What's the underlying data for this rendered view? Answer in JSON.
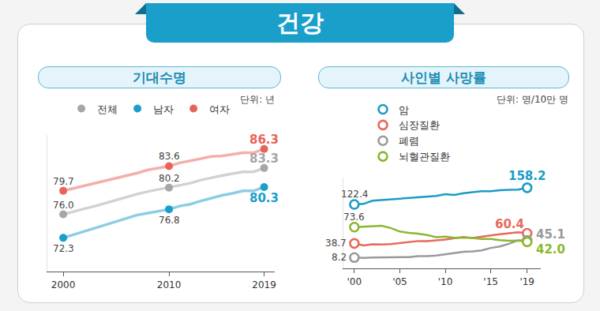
{
  "title": "건강",
  "chart_data": [
    {
      "type": "line",
      "title": "기대수명",
      "subtitle": "단위: 년",
      "x": [
        2000,
        2001,
        2002,
        2003,
        2004,
        2005,
        2006,
        2007,
        2008,
        2009,
        2010,
        2011,
        2012,
        2013,
        2014,
        2015,
        2016,
        2017,
        2018,
        2019
      ],
      "series": [
        {
          "name": "전체",
          "color": "#a6a6a6",
          "values": [
            76.0,
            76.5,
            76.9,
            77.3,
            77.8,
            78.2,
            78.7,
            79.2,
            79.6,
            79.9,
            80.2,
            80.6,
            80.9,
            81.4,
            81.8,
            82.1,
            82.4,
            82.7,
            82.7,
            83.3
          ],
          "value_labels": [
            "76.0",
            null,
            null,
            null,
            null,
            null,
            null,
            null,
            null,
            null,
            "80.2",
            null,
            null,
            null,
            null,
            null,
            null,
            null,
            null,
            "83.3"
          ]
        },
        {
          "name": "남자",
          "color": "#1a9fca",
          "values": [
            72.3,
            72.8,
            73.4,
            73.8,
            74.3,
            74.9,
            75.4,
            75.9,
            76.2,
            76.5,
            76.8,
            77.3,
            77.6,
            78.1,
            78.6,
            79.0,
            79.3,
            79.7,
            79.7,
            80.3
          ],
          "value_labels": [
            "72.3",
            null,
            null,
            null,
            null,
            null,
            null,
            null,
            null,
            null,
            "76.8",
            null,
            null,
            null,
            null,
            null,
            null,
            null,
            null,
            "80.3"
          ]
        },
        {
          "name": "여자",
          "color": "#e8645a",
          "values": [
            79.7,
            80.1,
            80.5,
            80.9,
            81.3,
            81.6,
            82.1,
            82.5,
            83.0,
            83.3,
            83.6,
            84.1,
            84.4,
            84.8,
            85.1,
            85.2,
            85.4,
            85.7,
            85.7,
            86.3
          ],
          "value_labels": [
            "79.7",
            null,
            null,
            null,
            null,
            null,
            null,
            null,
            null,
            null,
            "83.6",
            null,
            null,
            null,
            null,
            null,
            null,
            null,
            null,
            "86.3"
          ]
        }
      ],
      "xlim": [
        1998.5,
        2020
      ],
      "xticks": [
        2000,
        2010,
        2019
      ],
      "ylim": [
        67,
        88.5
      ],
      "grid": false,
      "legend": "top",
      "marker": "circle",
      "tick_labels": "x",
      "data_labels": true
    },
    {
      "type": "line",
      "title": "사인별 사망률",
      "subtitle": "단위: 명/10만 명",
      "x": [
        2000,
        2001,
        2002,
        2003,
        2004,
        2005,
        2006,
        2007,
        2008,
        2009,
        2010,
        2011,
        2012,
        2013,
        2014,
        2015,
        2016,
        2017,
        2018,
        2019
      ],
      "series": [
        {
          "name": "암",
          "color": "#1a9cc6",
          "values": [
            122.4,
            123.5,
            130.4,
            131.9,
            132.6,
            134.0,
            136.1,
            137.5,
            139.5,
            140.5,
            144.4,
            142.8,
            146.5,
            149.0,
            150.9,
            150.8,
            153.0,
            153.9,
            154.3,
            158.2
          ],
          "value_labels": [
            "122.4",
            null,
            null,
            null,
            null,
            null,
            null,
            null,
            null,
            null,
            null,
            null,
            null,
            null,
            null,
            null,
            null,
            null,
            null,
            "158.2"
          ]
        },
        {
          "name": "심장질환",
          "color": "#e66a5e",
          "values": [
            38.7,
            34.2,
            36.9,
            36.4,
            37.3,
            39.3,
            41.1,
            43.7,
            43.4,
            45.0,
            46.9,
            49.8,
            52.5,
            50.2,
            52.4,
            55.6,
            58.2,
            60.2,
            62.4,
            60.4
          ],
          "value_labels": [
            "38.7",
            null,
            null,
            null,
            null,
            null,
            null,
            null,
            null,
            null,
            null,
            null,
            null,
            null,
            null,
            null,
            null,
            null,
            null,
            "60.4"
          ]
        },
        {
          "name": "폐렴",
          "color": "#9a9a9a",
          "values": [
            8.2,
            7.6,
            8.5,
            8.9,
            8.4,
            8.6,
            9.3,
            11.1,
            11.1,
            12.7,
            14.9,
            17.2,
            20.5,
            21.4,
            23.7,
            28.9,
            32.2,
            37.8,
            45.4,
            45.1
          ],
          "value_labels": [
            "8.2",
            null,
            null,
            null,
            null,
            null,
            null,
            null,
            null,
            null,
            null,
            null,
            null,
            null,
            null,
            null,
            null,
            null,
            null,
            "45.1"
          ]
        },
        {
          "name": "뇌혈관질환",
          "color": "#8ab82e",
          "values": [
            73.6,
            74.3,
            76.0,
            76.4,
            71.7,
            64.1,
            61.3,
            59.6,
            56.5,
            52.0,
            53.2,
            50.7,
            51.1,
            50.3,
            48.2,
            48.0,
            45.8,
            44.4,
            44.7,
            42.0
          ],
          "value_labels": [
            "73.6",
            null,
            null,
            null,
            null,
            null,
            null,
            null,
            null,
            null,
            null,
            null,
            null,
            null,
            null,
            null,
            null,
            null,
            null,
            "42.0"
          ]
        }
      ],
      "xlim": [
        1998.8,
        2020.5
      ],
      "xticks": [
        {
          "value": 2000,
          "label": "'00"
        },
        {
          "value": 2005,
          "label": "'05"
        },
        {
          "value": 2010,
          "label": "'10"
        },
        {
          "value": 2015,
          "label": "'15"
        },
        {
          "value": 2019,
          "label": "'19"
        }
      ],
      "ylim": [
        -15,
        180
      ],
      "grid": false,
      "legend": "top",
      "marker": "ring",
      "tick_labels": "x",
      "data_labels": true
    }
  ]
}
